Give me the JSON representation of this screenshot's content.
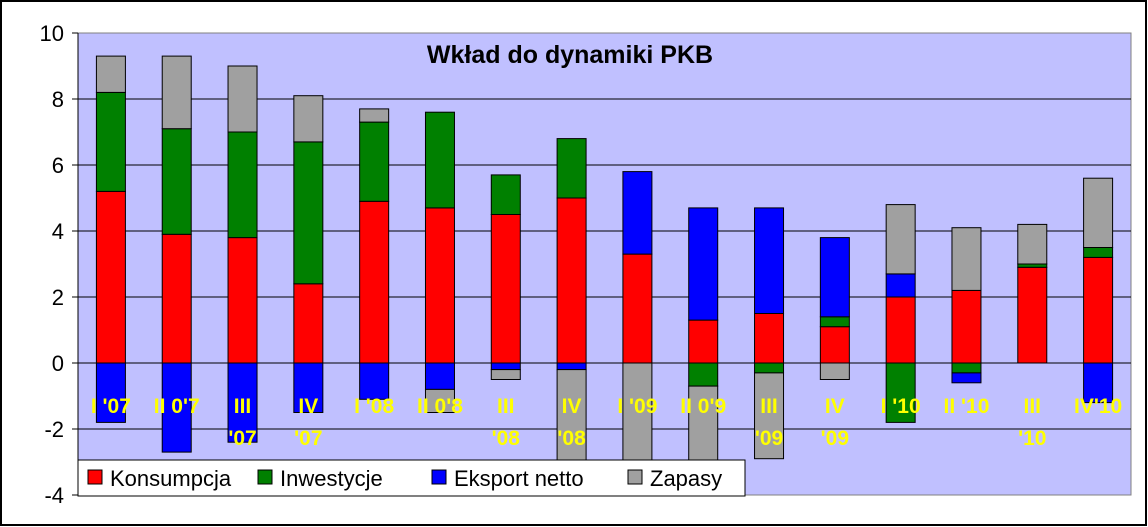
{
  "chart_data": {
    "type": "bar",
    "stacked": true,
    "title": "Wkład do dynamiki PKB",
    "categories": [
      "I '07",
      "II 0'7",
      "III '07",
      "IV '07",
      "I '08",
      "II 0'8",
      "III '08",
      "IV '08",
      "I '09",
      "II 0'9",
      "III '09",
      "IV '09",
      "I '10",
      "II '10",
      "III '10",
      "IV'10"
    ],
    "category_lines": [
      [
        "I '07"
      ],
      [
        "II 0'7"
      ],
      [
        "III",
        "'07"
      ],
      [
        "IV",
        "'07"
      ],
      [
        "I '08"
      ],
      [
        "II 0'8"
      ],
      [
        "III",
        "'08"
      ],
      [
        "IV",
        "'08"
      ],
      [
        "I '09"
      ],
      [
        "II 0'9"
      ],
      [
        "III",
        "'09"
      ],
      [
        "IV",
        "'09"
      ],
      [
        "I '10"
      ],
      [
        "II '10"
      ],
      [
        "III",
        "'10"
      ],
      [
        "IV'10"
      ]
    ],
    "series": [
      {
        "name": "Konsumpcja",
        "color": "#ff0000",
        "values": [
          5.2,
          3.9,
          3.8,
          2.4,
          4.9,
          4.7,
          4.5,
          5.0,
          3.3,
          1.3,
          1.5,
          1.1,
          2.0,
          2.2,
          2.9,
          3.2
        ]
      },
      {
        "name": "Inwestycje",
        "color": "#008000",
        "values": [
          3.0,
          3.2,
          3.2,
          4.3,
          2.4,
          2.9,
          1.2,
          1.8,
          0.0,
          -0.7,
          -0.3,
          0.3,
          -1.8,
          -0.3,
          0.1,
          0.3
        ]
      },
      {
        "name": "Eksport netto",
        "color": "#0000ff",
        "values": [
          -1.8,
          -2.7,
          -2.4,
          -1.5,
          -1.1,
          -0.8,
          -0.2,
          -0.2,
          2.5,
          3.4,
          3.2,
          2.4,
          0.7,
          -0.3,
          0.0,
          -1.2
        ]
      },
      {
        "name": "Zapasy",
        "color": "#a0a0a0",
        "values": [
          1.1,
          2.2,
          2.0,
          1.4,
          0.4,
          -0.7,
          -0.3,
          -3.2,
          -3.1,
          -2.4,
          -2.6,
          -0.5,
          2.1,
          1.9,
          1.2,
          2.1
        ]
      }
    ],
    "yticks": [
      10,
      8,
      6,
      4,
      2,
      0,
      -2,
      -4
    ],
    "ylim": [
      -4,
      10
    ],
    "xlabel": "",
    "ylabel": "",
    "grid": true,
    "legend_position": "bottom-left",
    "plot_background": "#c0c0ff"
  }
}
